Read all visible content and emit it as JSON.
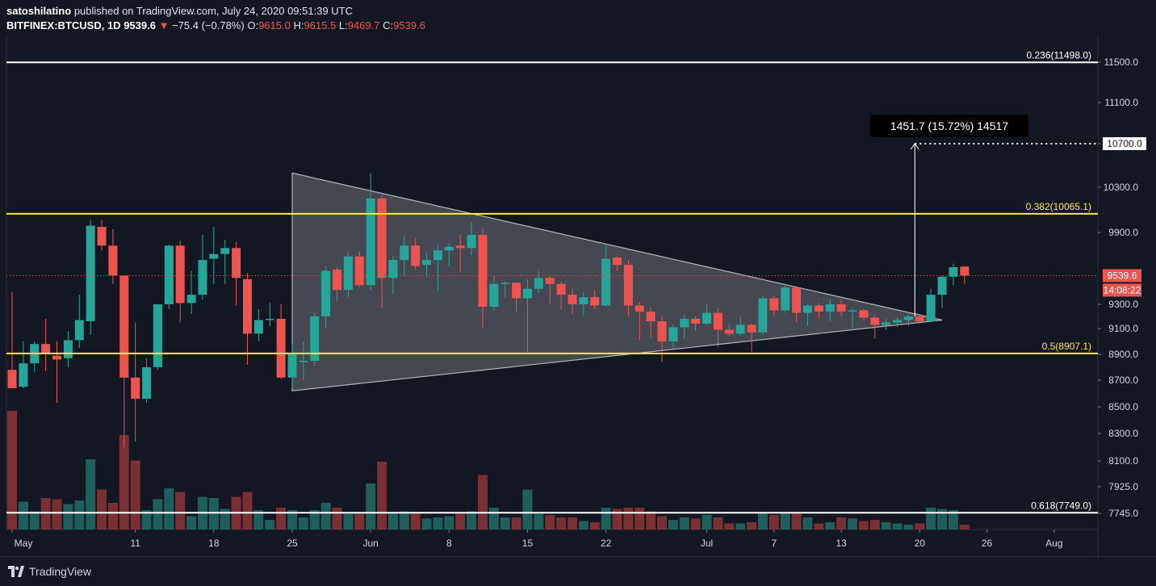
{
  "header": {
    "publisher": "satoshilatino",
    "published_text": "published on TradingView.com, July 24, 2020 09:51:39 UTC",
    "symbol": "BITFINEX:BTCUSD, 1D",
    "last": "9539.6",
    "change_arrow": "▼",
    "change": "−75.4 (−0.78%)",
    "o_label": "O:",
    "o": "9615.0",
    "h_label": "H:",
    "h": "9615.5",
    "l_label": "L:",
    "l": "9469.7",
    "c_label": "C:",
    "c": "9539.6"
  },
  "footer": {
    "brand": "TradingView",
    "logo_icon": "tradingview-logo-icon"
  },
  "colors": {
    "background": "#131722",
    "up": "#26a69a",
    "down": "#ef5350",
    "up_volume": "#1f5f5b",
    "down_volume": "#7a2f33",
    "fib_yellow": "#ffeb3b",
    "fib_white": "#ffffff",
    "triangle_fill": "#8a8c92"
  },
  "chart_data": {
    "type": "candlestick",
    "symbol": "BITFINEX:BTCUSD",
    "timeframe": "1D",
    "y_axis_ticks": [
      11500.0,
      11100.0,
      10700.0,
      10300.0,
      9900.0,
      9539.6,
      9300.0,
      9100.0,
      8900.0,
      8700.0,
      8500.0,
      8300.0,
      8100.0,
      7925.0,
      7745.0
    ],
    "y_axis_tick_labels": [
      "11500.0",
      "11100.0",
      "10700.0",
      "10300.0",
      "9900.0",
      "9539.6",
      "9300.0",
      "9100.0",
      "8900.0",
      "8700.0",
      "8500.0",
      "8300.0",
      "8100.0",
      "7925.0",
      "7745.0"
    ],
    "x_axis_ticks": [
      {
        "label": "May",
        "date": "2020-04-30"
      },
      {
        "label": "11",
        "date": "2020-05-11"
      },
      {
        "label": "18",
        "date": "2020-05-18"
      },
      {
        "label": "25",
        "date": "2020-05-25"
      },
      {
        "label": "Jun",
        "date": "2020-06-01"
      },
      {
        "label": "8",
        "date": "2020-06-08"
      },
      {
        "label": "15",
        "date": "2020-06-15"
      },
      {
        "label": "22",
        "date": "2020-06-22"
      },
      {
        "label": "Jul",
        "date": "2020-07-01"
      },
      {
        "label": "7",
        "date": "2020-07-07"
      },
      {
        "label": "13",
        "date": "2020-07-13"
      },
      {
        "label": "20",
        "date": "2020-07-20"
      },
      {
        "label": "26",
        "date": "2020-07-26"
      },
      {
        "label": "Aug",
        "date": "2020-08-01"
      }
    ],
    "fib_levels": [
      {
        "label": "0.236(11498.0)",
        "ratio": 0.236,
        "price": 11498.0,
        "color": "#ffffff"
      },
      {
        "label": "0.382(10065.1)",
        "ratio": 0.382,
        "price": 10065.1,
        "color": "#ffeb3b"
      },
      {
        "label": "0.5(8907.1)",
        "ratio": 0.5,
        "price": 8907.1,
        "color": "#ffeb3b"
      },
      {
        "label": "0.618(7749.0)",
        "ratio": 0.618,
        "price": 7749.0,
        "color": "#ffffff"
      }
    ],
    "last_price_label": "9539.6",
    "countdown_label": "14:08:22",
    "target": {
      "label": "10700.0",
      "price": 10700.0
    },
    "measure_annotation": "1451.7 (15.72%) 14517",
    "triangle": [
      {
        "date": "2020-05-25",
        "price": 10430
      },
      {
        "date": "2020-05-25",
        "price": 8620
      },
      {
        "date": "2020-07-22",
        "price": 9170
      }
    ],
    "candles": [
      {
        "date": "2020-04-30",
        "o": 8780,
        "h": 9400,
        "l": 8640,
        "c": 8640
      },
      {
        "date": "2020-05-01",
        "o": 8650,
        "h": 9000,
        "l": 8640,
        "c": 8830
      },
      {
        "date": "2020-05-02",
        "o": 8830,
        "h": 9000,
        "l": 8760,
        "c": 8980
      },
      {
        "date": "2020-05-03",
        "o": 8980,
        "h": 9180,
        "l": 8770,
        "c": 8900
      },
      {
        "date": "2020-05-04",
        "o": 8890,
        "h": 9000,
        "l": 8530,
        "c": 8860
      },
      {
        "date": "2020-05-05",
        "o": 8870,
        "h": 9080,
        "l": 8800,
        "c": 9010
      },
      {
        "date": "2020-05-06",
        "o": 9010,
        "h": 9380,
        "l": 8950,
        "c": 9170
      },
      {
        "date": "2020-05-07",
        "o": 9160,
        "h": 10010,
        "l": 9050,
        "c": 9960
      },
      {
        "date": "2020-05-08",
        "o": 9950,
        "h": 10010,
        "l": 9750,
        "c": 9790
      },
      {
        "date": "2020-05-09",
        "o": 9790,
        "h": 9930,
        "l": 9470,
        "c": 9540
      },
      {
        "date": "2020-05-10",
        "o": 9540,
        "h": 9540,
        "l": 8200,
        "c": 8720
      },
      {
        "date": "2020-05-11",
        "o": 8720,
        "h": 9150,
        "l": 8240,
        "c": 8560
      },
      {
        "date": "2020-05-12",
        "o": 8560,
        "h": 8870,
        "l": 8530,
        "c": 8800
      },
      {
        "date": "2020-05-13",
        "o": 8800,
        "h": 9300,
        "l": 8780,
        "c": 9300
      },
      {
        "date": "2020-05-14",
        "o": 9300,
        "h": 9800,
        "l": 9260,
        "c": 9790
      },
      {
        "date": "2020-05-15",
        "o": 9790,
        "h": 9830,
        "l": 9150,
        "c": 9310
      },
      {
        "date": "2020-05-16",
        "o": 9310,
        "h": 9580,
        "l": 9220,
        "c": 9380
      },
      {
        "date": "2020-05-17",
        "o": 9380,
        "h": 9880,
        "l": 9340,
        "c": 9670
      },
      {
        "date": "2020-05-18",
        "o": 9680,
        "h": 9950,
        "l": 9470,
        "c": 9720
      },
      {
        "date": "2020-05-19",
        "o": 9720,
        "h": 9840,
        "l": 9470,
        "c": 9770
      },
      {
        "date": "2020-05-20",
        "o": 9770,
        "h": 9820,
        "l": 9290,
        "c": 9520
      },
      {
        "date": "2020-05-21",
        "o": 9510,
        "h": 9560,
        "l": 8820,
        "c": 9060
      },
      {
        "date": "2020-05-22",
        "o": 9060,
        "h": 9260,
        "l": 9000,
        "c": 9170
      },
      {
        "date": "2020-05-23",
        "o": 9170,
        "h": 9310,
        "l": 9120,
        "c": 9180
      },
      {
        "date": "2020-05-24",
        "o": 9180,
        "h": 9300,
        "l": 8710,
        "c": 8720
      },
      {
        "date": "2020-05-25",
        "o": 8720,
        "h": 8980,
        "l": 8640,
        "c": 8900
      },
      {
        "date": "2020-05-26",
        "o": 8840,
        "h": 9000,
        "l": 8700,
        "c": 8850
      },
      {
        "date": "2020-05-27",
        "o": 8850,
        "h": 9230,
        "l": 8810,
        "c": 9200
      },
      {
        "date": "2020-05-28",
        "o": 9200,
        "h": 9620,
        "l": 9110,
        "c": 9580
      },
      {
        "date": "2020-05-29",
        "o": 9590,
        "h": 9610,
        "l": 9330,
        "c": 9420
      },
      {
        "date": "2020-05-30",
        "o": 9420,
        "h": 9740,
        "l": 9360,
        "c": 9700
      },
      {
        "date": "2020-05-31",
        "o": 9700,
        "h": 9740,
        "l": 9440,
        "c": 9460
      },
      {
        "date": "2020-06-01",
        "o": 9460,
        "h": 10430,
        "l": 9420,
        "c": 10200
      },
      {
        "date": "2020-06-02",
        "o": 10200,
        "h": 10230,
        "l": 9270,
        "c": 9520
      },
      {
        "date": "2020-06-03",
        "o": 9520,
        "h": 9700,
        "l": 9380,
        "c": 9670
      },
      {
        "date": "2020-06-04",
        "o": 9670,
        "h": 9880,
        "l": 9530,
        "c": 9790
      },
      {
        "date": "2020-06-05",
        "o": 9790,
        "h": 9850,
        "l": 9590,
        "c": 9620
      },
      {
        "date": "2020-06-06",
        "o": 9630,
        "h": 9730,
        "l": 9530,
        "c": 9670
      },
      {
        "date": "2020-06-07",
        "o": 9670,
        "h": 9800,
        "l": 9410,
        "c": 9750
      },
      {
        "date": "2020-06-08",
        "o": 9750,
        "h": 9810,
        "l": 9620,
        "c": 9780
      },
      {
        "date": "2020-06-09",
        "o": 9790,
        "h": 9880,
        "l": 9570,
        "c": 9770
      },
      {
        "date": "2020-06-10",
        "o": 9770,
        "h": 9990,
        "l": 9710,
        "c": 9880
      },
      {
        "date": "2020-06-11",
        "o": 9880,
        "h": 9940,
        "l": 9100,
        "c": 9280
      },
      {
        "date": "2020-06-12",
        "o": 9280,
        "h": 9540,
        "l": 9250,
        "c": 9470
      },
      {
        "date": "2020-06-13",
        "o": 9470,
        "h": 9490,
        "l": 9360,
        "c": 9480
      },
      {
        "date": "2020-06-14",
        "o": 9480,
        "h": 9480,
        "l": 9240,
        "c": 9350
      },
      {
        "date": "2020-06-15",
        "o": 9350,
        "h": 9510,
        "l": 8920,
        "c": 9430
      },
      {
        "date": "2020-06-16",
        "o": 9430,
        "h": 9580,
        "l": 9390,
        "c": 9520
      },
      {
        "date": "2020-06-17",
        "o": 9520,
        "h": 9540,
        "l": 9300,
        "c": 9470
      },
      {
        "date": "2020-06-18",
        "o": 9470,
        "h": 9490,
        "l": 9260,
        "c": 9380
      },
      {
        "date": "2020-06-19",
        "o": 9380,
        "h": 9430,
        "l": 9220,
        "c": 9300
      },
      {
        "date": "2020-06-20",
        "o": 9300,
        "h": 9400,
        "l": 9210,
        "c": 9360
      },
      {
        "date": "2020-06-21",
        "o": 9360,
        "h": 9420,
        "l": 9260,
        "c": 9290
      },
      {
        "date": "2020-06-22",
        "o": 9290,
        "h": 9790,
        "l": 9280,
        "c": 9680
      },
      {
        "date": "2020-06-23",
        "o": 9690,
        "h": 9700,
        "l": 9580,
        "c": 9630
      },
      {
        "date": "2020-06-24",
        "o": 9630,
        "h": 9670,
        "l": 9200,
        "c": 9290
      },
      {
        "date": "2020-06-25",
        "o": 9290,
        "h": 9320,
        "l": 9010,
        "c": 9240
      },
      {
        "date": "2020-06-26",
        "o": 9240,
        "h": 9280,
        "l": 9030,
        "c": 9160
      },
      {
        "date": "2020-06-27",
        "o": 9160,
        "h": 9200,
        "l": 8840,
        "c": 9000
      },
      {
        "date": "2020-06-28",
        "o": 9000,
        "h": 9130,
        "l": 8950,
        "c": 9110
      },
      {
        "date": "2020-06-29",
        "o": 9110,
        "h": 9220,
        "l": 9020,
        "c": 9180
      },
      {
        "date": "2020-06-30",
        "o": 9180,
        "h": 9200,
        "l": 9080,
        "c": 9140
      },
      {
        "date": "2020-07-01",
        "o": 9140,
        "h": 9300,
        "l": 9130,
        "c": 9230
      },
      {
        "date": "2020-07-02",
        "o": 9230,
        "h": 9270,
        "l": 8960,
        "c": 9090
      },
      {
        "date": "2020-07-03",
        "o": 9090,
        "h": 9130,
        "l": 9040,
        "c": 9060
      },
      {
        "date": "2020-07-04",
        "o": 9060,
        "h": 9200,
        "l": 9040,
        "c": 9130
      },
      {
        "date": "2020-07-05",
        "o": 9130,
        "h": 9140,
        "l": 8920,
        "c": 9070
      },
      {
        "date": "2020-07-06",
        "o": 9070,
        "h": 9370,
        "l": 9050,
        "c": 9350
      },
      {
        "date": "2020-07-07",
        "o": 9350,
        "h": 9370,
        "l": 9210,
        "c": 9250
      },
      {
        "date": "2020-07-08",
        "o": 9250,
        "h": 9460,
        "l": 9230,
        "c": 9440
      },
      {
        "date": "2020-07-09",
        "o": 9440,
        "h": 9450,
        "l": 9150,
        "c": 9230
      },
      {
        "date": "2020-07-10",
        "o": 9230,
        "h": 9300,
        "l": 9120,
        "c": 9290
      },
      {
        "date": "2020-07-11",
        "o": 9290,
        "h": 9310,
        "l": 9180,
        "c": 9240
      },
      {
        "date": "2020-07-12",
        "o": 9240,
        "h": 9340,
        "l": 9160,
        "c": 9300
      },
      {
        "date": "2020-07-13",
        "o": 9300,
        "h": 9340,
        "l": 9200,
        "c": 9240
      },
      {
        "date": "2020-07-14",
        "o": 9240,
        "h": 9270,
        "l": 9110,
        "c": 9250
      },
      {
        "date": "2020-07-15",
        "o": 9250,
        "h": 9260,
        "l": 9170,
        "c": 9190
      },
      {
        "date": "2020-07-16",
        "o": 9190,
        "h": 9210,
        "l": 9020,
        "c": 9130
      },
      {
        "date": "2020-07-17",
        "o": 9130,
        "h": 9180,
        "l": 9090,
        "c": 9150
      },
      {
        "date": "2020-07-18",
        "o": 9150,
        "h": 9190,
        "l": 9110,
        "c": 9170
      },
      {
        "date": "2020-07-19",
        "o": 9170,
        "h": 9220,
        "l": 9120,
        "c": 9200
      },
      {
        "date": "2020-07-20",
        "o": 9200,
        "h": 9220,
        "l": 9140,
        "c": 9160
      },
      {
        "date": "2020-07-21",
        "o": 9160,
        "h": 9430,
        "l": 9150,
        "c": 9380
      },
      {
        "date": "2020-07-22",
        "o": 9380,
        "h": 9540,
        "l": 9270,
        "c": 9530
      },
      {
        "date": "2020-07-23",
        "o": 9530,
        "h": 9640,
        "l": 9460,
        "c": 9610
      },
      {
        "date": "2020-07-24",
        "o": 9615,
        "h": 9615.5,
        "l": 9469.7,
        "c": 9539.6
      }
    ],
    "volumes": [
      {
        "date": "2020-04-30",
        "v": 0.98
      },
      {
        "date": "2020-05-01",
        "v": 0.23
      },
      {
        "date": "2020-05-02",
        "v": 0.15
      },
      {
        "date": "2020-05-03",
        "v": 0.26
      },
      {
        "date": "2020-05-04",
        "v": 0.25
      },
      {
        "date": "2020-05-05",
        "v": 0.21
      },
      {
        "date": "2020-05-06",
        "v": 0.24
      },
      {
        "date": "2020-05-07",
        "v": 0.58
      },
      {
        "date": "2020-05-08",
        "v": 0.33
      },
      {
        "date": "2020-05-09",
        "v": 0.22
      },
      {
        "date": "2020-05-10",
        "v": 0.78
      },
      {
        "date": "2020-05-11",
        "v": 0.57
      },
      {
        "date": "2020-05-12",
        "v": 0.16
      },
      {
        "date": "2020-05-13",
        "v": 0.25
      },
      {
        "date": "2020-05-14",
        "v": 0.34
      },
      {
        "date": "2020-05-15",
        "v": 0.31
      },
      {
        "date": "2020-05-16",
        "v": 0.11
      },
      {
        "date": "2020-05-17",
        "v": 0.27
      },
      {
        "date": "2020-05-18",
        "v": 0.26
      },
      {
        "date": "2020-05-19",
        "v": 0.17
      },
      {
        "date": "2020-05-20",
        "v": 0.27
      },
      {
        "date": "2020-05-21",
        "v": 0.31
      },
      {
        "date": "2020-05-22",
        "v": 0.16
      },
      {
        "date": "2020-05-23",
        "v": 0.08
      },
      {
        "date": "2020-05-24",
        "v": 0.18
      },
      {
        "date": "2020-05-25",
        "v": 0.16
      },
      {
        "date": "2020-05-26",
        "v": 0.1
      },
      {
        "date": "2020-05-27",
        "v": 0.16
      },
      {
        "date": "2020-05-28",
        "v": 0.22
      },
      {
        "date": "2020-05-29",
        "v": 0.18
      },
      {
        "date": "2020-05-30",
        "v": 0.13
      },
      {
        "date": "2020-05-31",
        "v": 0.13
      },
      {
        "date": "2020-06-01",
        "v": 0.38
      },
      {
        "date": "2020-06-02",
        "v": 0.56
      },
      {
        "date": "2020-06-03",
        "v": 0.14
      },
      {
        "date": "2020-06-04",
        "v": 0.15
      },
      {
        "date": "2020-06-05",
        "v": 0.13
      },
      {
        "date": "2020-06-06",
        "v": 0.09
      },
      {
        "date": "2020-06-07",
        "v": 0.1
      },
      {
        "date": "2020-06-08",
        "v": 0.11
      },
      {
        "date": "2020-06-09",
        "v": 0.13
      },
      {
        "date": "2020-06-10",
        "v": 0.15
      },
      {
        "date": "2020-06-11",
        "v": 0.45
      },
      {
        "date": "2020-06-12",
        "v": 0.18
      },
      {
        "date": "2020-06-13",
        "v": 0.1
      },
      {
        "date": "2020-06-14",
        "v": 0.1
      },
      {
        "date": "2020-06-15",
        "v": 0.33
      },
      {
        "date": "2020-06-16",
        "v": 0.13
      },
      {
        "date": "2020-06-17",
        "v": 0.12
      },
      {
        "date": "2020-06-18",
        "v": 0.1
      },
      {
        "date": "2020-06-19",
        "v": 0.1
      },
      {
        "date": "2020-06-20",
        "v": 0.07
      },
      {
        "date": "2020-06-21",
        "v": 0.06
      },
      {
        "date": "2020-06-22",
        "v": 0.18
      },
      {
        "date": "2020-06-23",
        "v": 0.17
      },
      {
        "date": "2020-06-24",
        "v": 0.18
      },
      {
        "date": "2020-06-25",
        "v": 0.18
      },
      {
        "date": "2020-06-26",
        "v": 0.15
      },
      {
        "date": "2020-06-27",
        "v": 0.11
      },
      {
        "date": "2020-06-28",
        "v": 0.08
      },
      {
        "date": "2020-06-29",
        "v": 0.1
      },
      {
        "date": "2020-06-30",
        "v": 0.09
      },
      {
        "date": "2020-07-01",
        "v": 0.12
      },
      {
        "date": "2020-07-02",
        "v": 0.1
      },
      {
        "date": "2020-07-03",
        "v": 0.05
      },
      {
        "date": "2020-07-04",
        "v": 0.05
      },
      {
        "date": "2020-07-05",
        "v": 0.06
      },
      {
        "date": "2020-07-06",
        "v": 0.14
      },
      {
        "date": "2020-07-07",
        "v": 0.12
      },
      {
        "date": "2020-07-08",
        "v": 0.14
      },
      {
        "date": "2020-07-09",
        "v": 0.14
      },
      {
        "date": "2020-07-10",
        "v": 0.1
      },
      {
        "date": "2020-07-11",
        "v": 0.05
      },
      {
        "date": "2020-07-12",
        "v": 0.06
      },
      {
        "date": "2020-07-13",
        "v": 0.1
      },
      {
        "date": "2020-07-14",
        "v": 0.09
      },
      {
        "date": "2020-07-15",
        "v": 0.07
      },
      {
        "date": "2020-07-16",
        "v": 0.08
      },
      {
        "date": "2020-07-17",
        "v": 0.06
      },
      {
        "date": "2020-07-18",
        "v": 0.05
      },
      {
        "date": "2020-07-19",
        "v": 0.04
      },
      {
        "date": "2020-07-20",
        "v": 0.05
      },
      {
        "date": "2020-07-21",
        "v": 0.18
      },
      {
        "date": "2020-07-22",
        "v": 0.17
      },
      {
        "date": "2020-07-23",
        "v": 0.16
      },
      {
        "date": "2020-07-24",
        "v": 0.04
      }
    ]
  }
}
